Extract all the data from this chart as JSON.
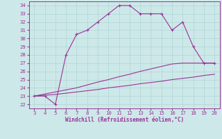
{
  "x": [
    3,
    4,
    5,
    6,
    7,
    8,
    9,
    10,
    11,
    12,
    13,
    14,
    15,
    16,
    17,
    18,
    19,
    20
  ],
  "windchill": [
    23,
    23,
    22,
    28,
    30.5,
    31,
    32,
    33,
    34,
    34,
    33,
    33,
    33,
    31,
    32,
    29,
    27,
    27
  ],
  "line_low": [
    23,
    23.1,
    23.2,
    23.35,
    23.5,
    23.65,
    23.8,
    24.0,
    24.15,
    24.3,
    24.5,
    24.65,
    24.8,
    25.0,
    25.15,
    25.3,
    25.5,
    25.65
  ],
  "line_high": [
    23,
    23.25,
    23.5,
    23.75,
    24.0,
    24.35,
    24.7,
    25.0,
    25.35,
    25.65,
    26.0,
    26.3,
    26.6,
    26.9,
    27.0,
    27.0,
    27.0,
    27.0
  ],
  "line_color": "#993399",
  "bg_color": "#cde8e8",
  "grid_color": "#afd4d4",
  "xlabel": "Windchill (Refroidissement éolien,°C)",
  "ylim": [
    21.5,
    34.5
  ],
  "xlim": [
    2.5,
    20.5
  ],
  "yticks": [
    22,
    23,
    24,
    25,
    26,
    27,
    28,
    29,
    30,
    31,
    32,
    33,
    34
  ],
  "xticks": [
    3,
    4,
    5,
    6,
    7,
    8,
    9,
    10,
    11,
    12,
    13,
    14,
    15,
    16,
    17,
    18,
    19,
    20
  ]
}
